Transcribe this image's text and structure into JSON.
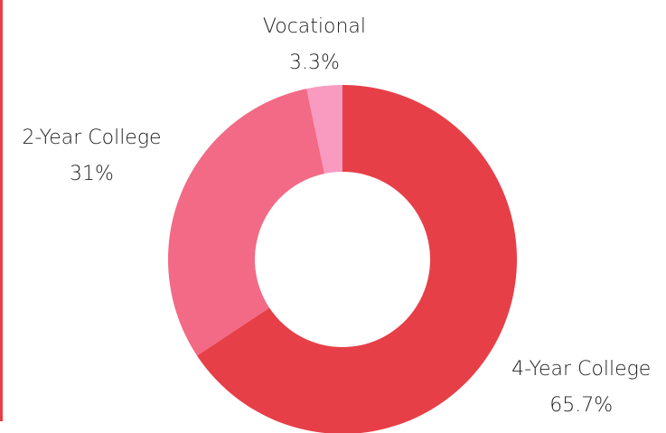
{
  "chart_data": {
    "type": "donut",
    "categories": [
      "4-Year College",
      "2-Year College",
      "Vocational"
    ],
    "values": [
      65.7,
      31,
      3.3
    ],
    "value_labels": [
      "65.7%",
      "31%",
      "3.3%"
    ],
    "colors": [
      "#e63f47",
      "#f26a85",
      "#f99ac0"
    ]
  }
}
